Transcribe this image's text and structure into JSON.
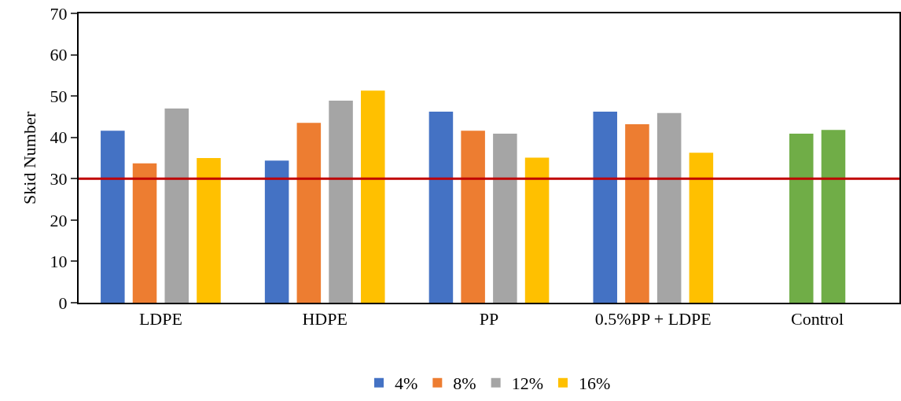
{
  "chart_data": {
    "type": "bar",
    "categories": [
      "LDPE",
      "HDPE",
      "PP",
      "0.5%PP + LDPE",
      "Control"
    ],
    "ylabel": "Skid Number",
    "series": [
      {
        "name": "4%",
        "color": "#4472c4",
        "values": [
          41.6,
          34.4,
          46.2,
          46.2,
          null
        ]
      },
      {
        "name": "8%",
        "color": "#ed7d31",
        "colors": [
          null,
          null,
          null,
          null,
          "#70ad47"
        ],
        "values": [
          33.7,
          43.5,
          41.6,
          43.2,
          40.9
        ]
      },
      {
        "name": "12%",
        "color": "#a5a5a5",
        "colors": [
          null,
          null,
          null,
          null,
          "#70ad47"
        ],
        "values": [
          47.0,
          48.9,
          40.9,
          45.9,
          41.8
        ]
      },
      {
        "name": "16%",
        "color": "#ffc000",
        "values": [
          35.0,
          51.3,
          35.1,
          36.3,
          null
        ]
      }
    ],
    "ylim": [
      0,
      70
    ],
    "yticks": [
      0,
      10,
      20,
      30,
      40,
      50,
      60,
      70
    ],
    "ref_lines": [
      {
        "axis": "y",
        "value": 30,
        "color": "#c00000",
        "line_style": "solid"
      }
    ],
    "grid": false,
    "legend": "bottom"
  }
}
